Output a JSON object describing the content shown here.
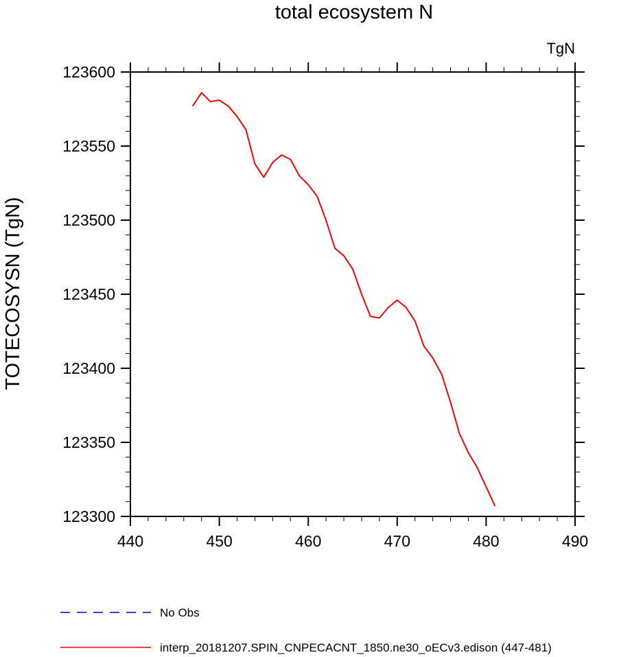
{
  "chart_data": {
    "type": "line",
    "title": "total ecosystem N",
    "units": "TgN",
    "ylabel": "TOTECOSYSN  (TgN)",
    "xlabel": "",
    "xlim": [
      440,
      490
    ],
    "ylim": [
      123300,
      123600
    ],
    "x_ticks": [
      440,
      450,
      460,
      470,
      480,
      490
    ],
    "y_ticks": [
      123300,
      123350,
      123400,
      123450,
      123500,
      123550,
      123600
    ],
    "x_tick_labels": [
      "440",
      "450",
      "460",
      "470",
      "480",
      "490"
    ],
    "y_tick_labels": [
      "123300",
      "123350",
      "123400",
      "123450",
      "123500",
      "123550",
      "123600"
    ],
    "series": [
      {
        "name": "interp_20181207.SPIN_CNPECACNT_1850.ne30_oECv3.edison (447-481)",
        "color": "#ff0000",
        "dash": "solid",
        "x": [
          447,
          448,
          449,
          450,
          451,
          452,
          453,
          454,
          455,
          456,
          457,
          458,
          459,
          460,
          461,
          462,
          463,
          464,
          465,
          466,
          467,
          468,
          469,
          470,
          471,
          472,
          473,
          474,
          475,
          476,
          477,
          478,
          479,
          480,
          481
        ],
        "values": [
          123577,
          123586,
          123580,
          123581,
          123577,
          123570,
          123561,
          123538,
          123529,
          123539,
          123544,
          123541,
          123530,
          123524,
          123516,
          123500,
          123481,
          123476,
          123467,
          123450,
          123435,
          123434,
          123441,
          123446,
          123441,
          123432,
          123415,
          123407,
          123396,
          123377,
          123356,
          123343,
          123333,
          123320,
          123307
        ]
      }
    ],
    "legend": [
      {
        "label": "No Obs",
        "color": "#0000cc",
        "dash": "dashed"
      },
      {
        "label": "interp_20181207.SPIN_CNPECACNT_1850.ne30_oECv3.edison (447-481)",
        "color": "#ff0000",
        "dash": "solid"
      }
    ],
    "legend_position": "bottom-left"
  }
}
